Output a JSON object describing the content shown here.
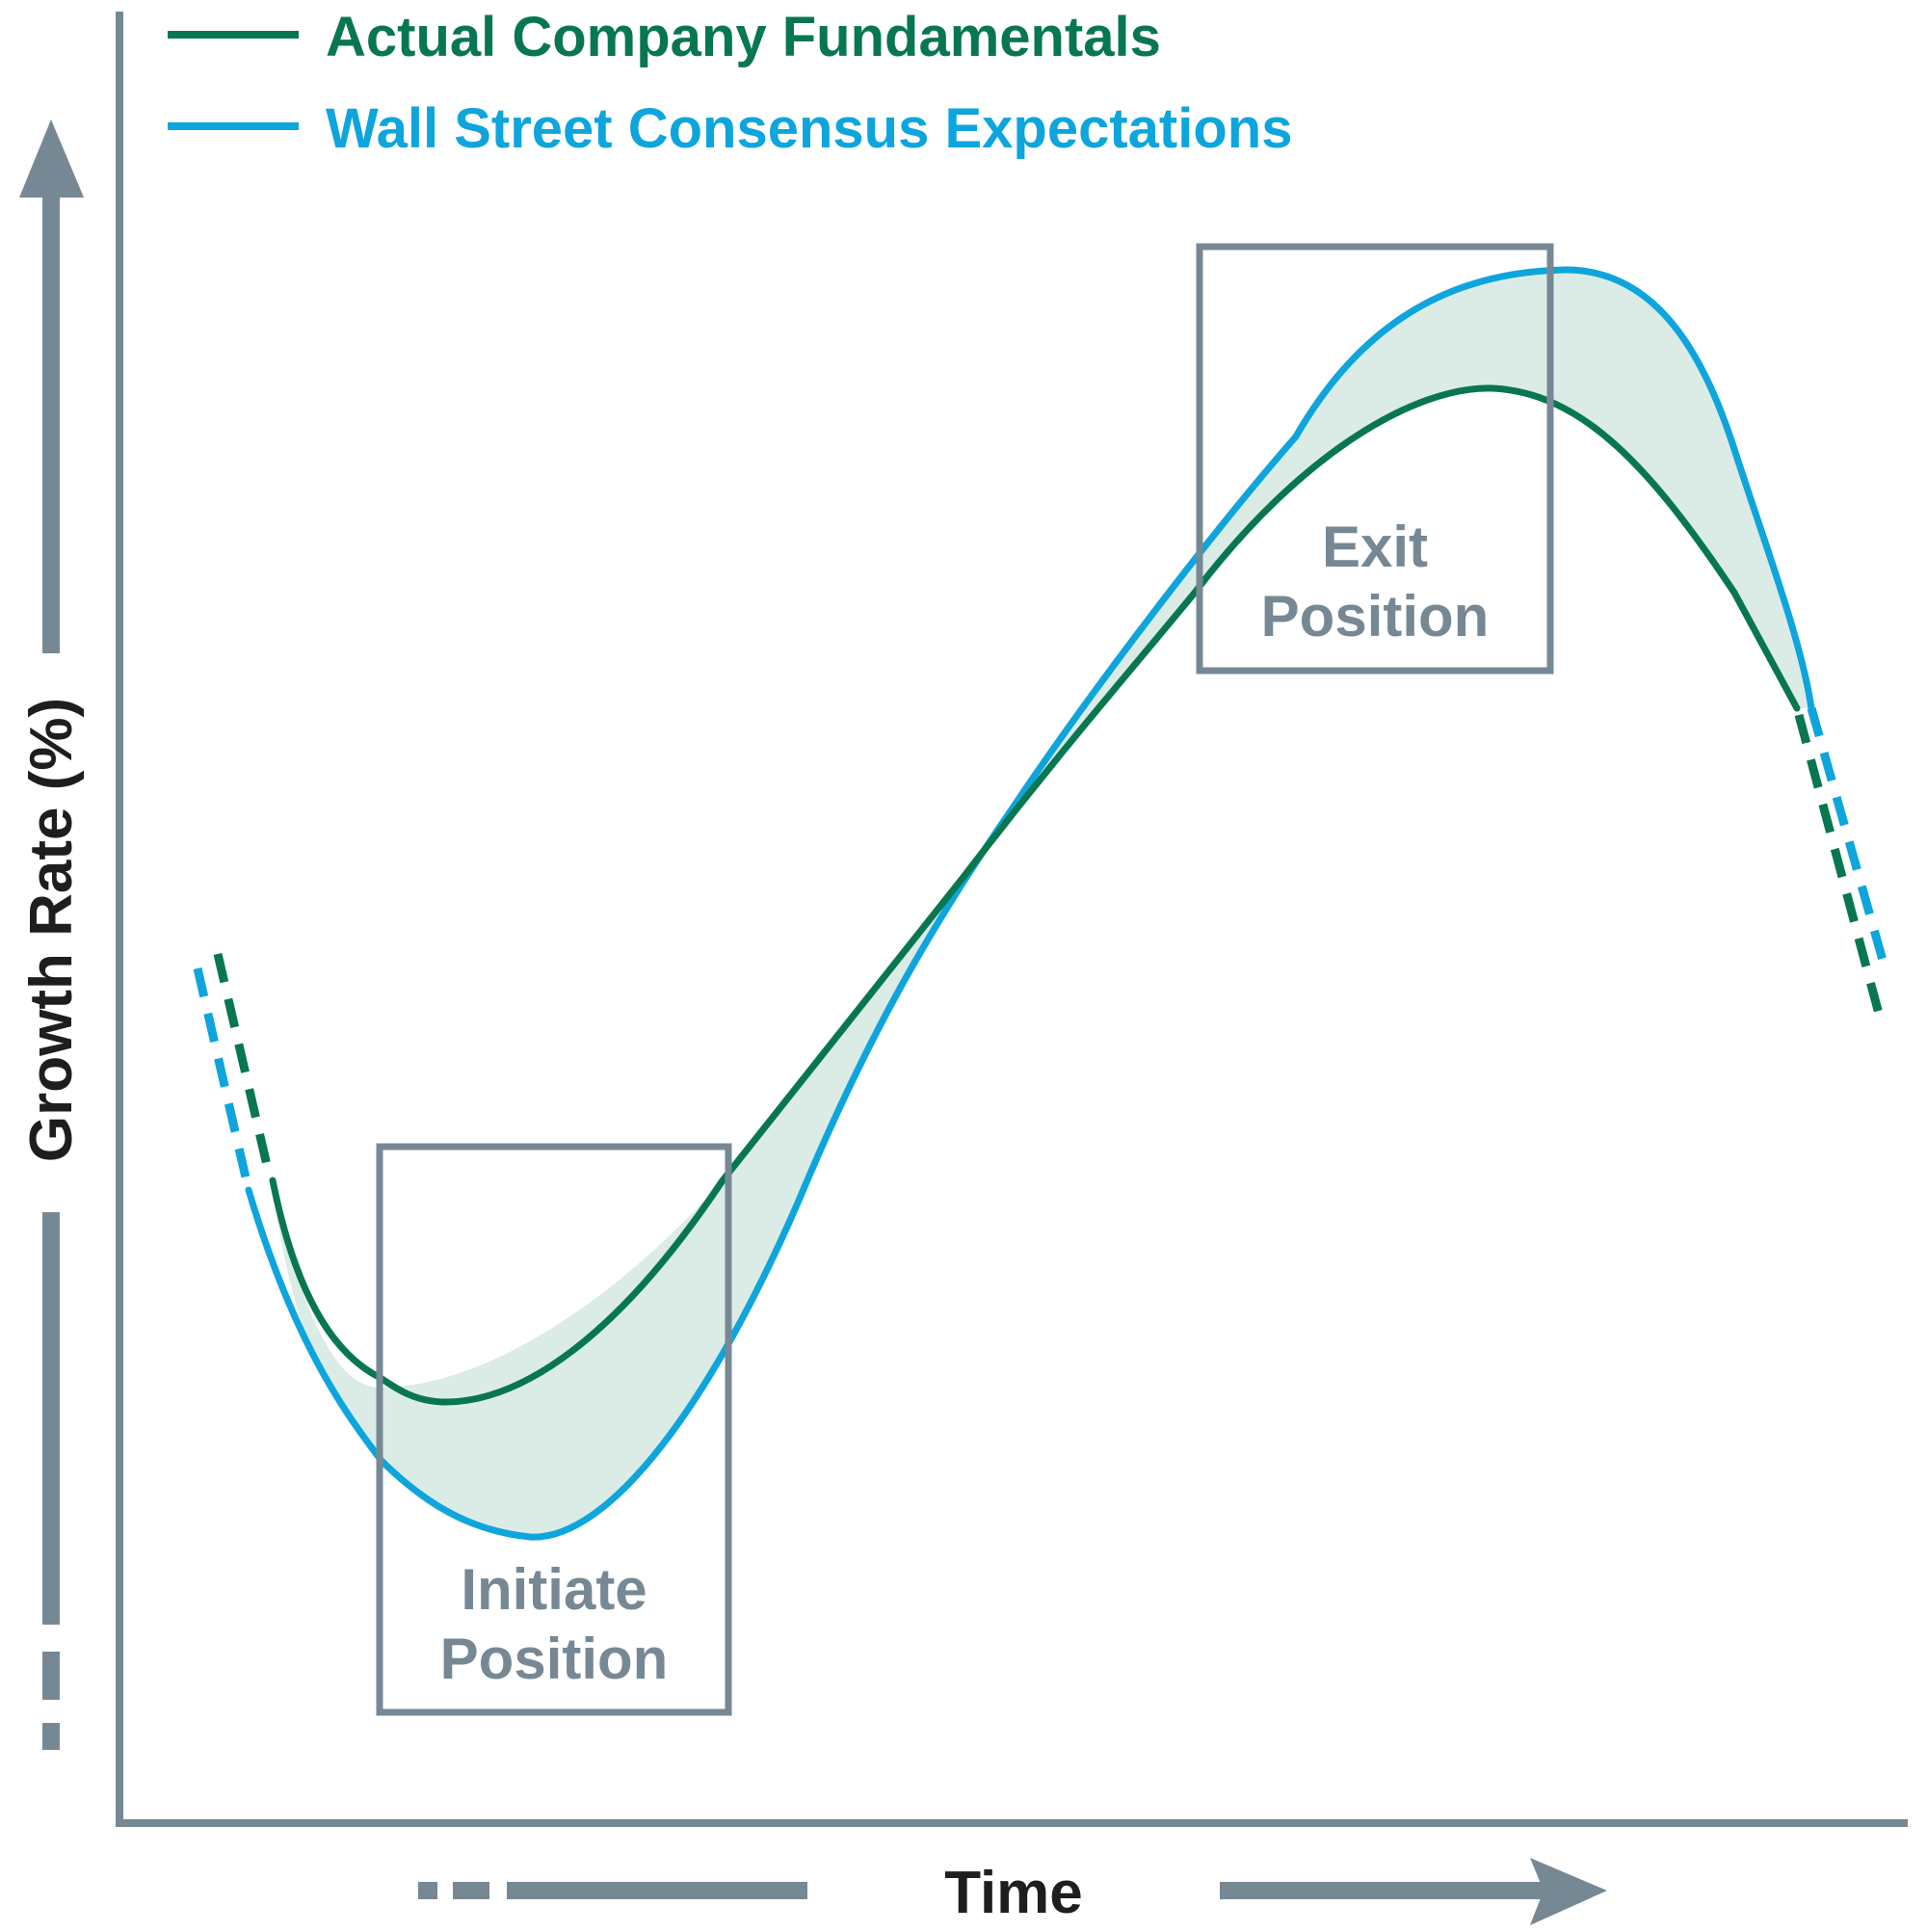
{
  "legend": {
    "actual": {
      "label": "Actual Company Fundamentals",
      "color": "#08774f"
    },
    "consensus": {
      "label": "Wall Street Consensus Expectations",
      "color": "#0ea5dd"
    }
  },
  "annotations": {
    "initiate": {
      "line1": "Initiate",
      "line2": "Position"
    },
    "exit": {
      "line1": "Exit",
      "line2": "Position"
    }
  },
  "axes": {
    "x_label": "Time",
    "y_label": "Growth Rate (%)",
    "axis_color": "#778895"
  },
  "gap_fill_color": "#dbece6"
}
